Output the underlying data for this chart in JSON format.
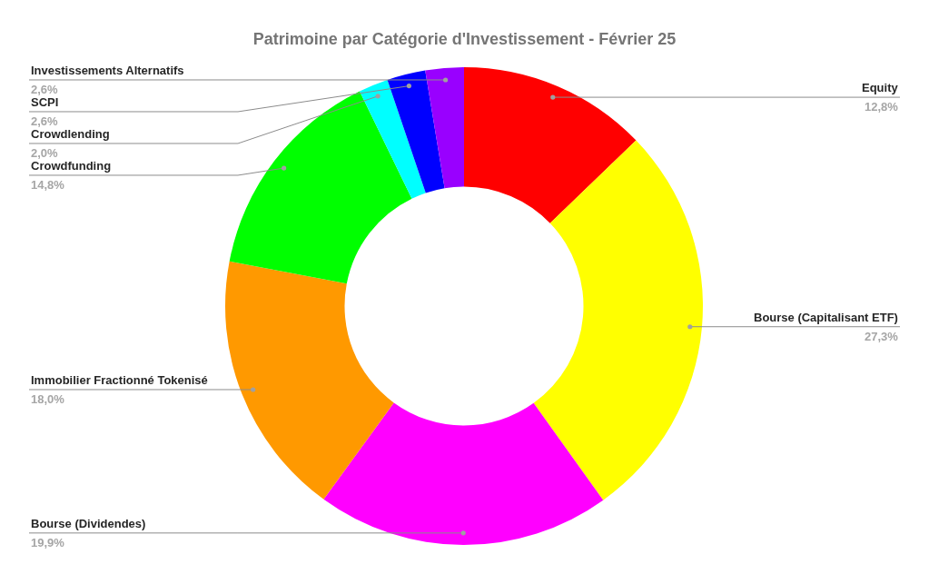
{
  "chart_data": {
    "type": "donut",
    "title": "Patrimoine par Catégorie d'Investissement - Février 25",
    "categories": [
      "Equity",
      "Bourse (Capitalisant ETF)",
      "Bourse (Dividendes)",
      "Immobilier Fractionné Tokenisé",
      "Crowdfunding",
      "Crowdlending",
      "SCPI",
      "Investissements Alternatifs"
    ],
    "values": [
      12.8,
      27.3,
      19.9,
      18.0,
      14.8,
      2.0,
      2.6,
      2.6
    ],
    "colors": [
      "#ff0000",
      "#ffff00",
      "#ff00ff",
      "#ff9900",
      "#00ff00",
      "#00ffff",
      "#0000ff",
      "#9900ff"
    ],
    "value_labels": [
      "12,8%",
      "27,3%",
      "19,9%",
      "18,0%",
      "14,8%",
      "2,0%",
      "2,6%",
      "2,6%"
    ]
  }
}
